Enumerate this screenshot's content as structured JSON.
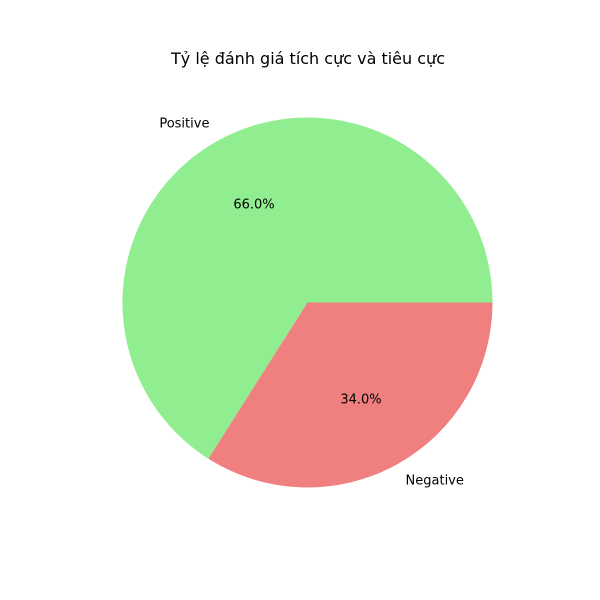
{
  "chart_data": {
    "type": "pie",
    "title": "Tỷ lệ đánh giá tích cực và tiêu cực",
    "labels": [
      "Positive",
      "Negative"
    ],
    "values": [
      66.0,
      34.0
    ],
    "percent_labels": [
      "66.0%",
      "34.0%"
    ],
    "colors": [
      "#90ee90",
      "#f08080"
    ],
    "start_angle_deg": 0,
    "direction": "counterclockwise",
    "legend": "none"
  }
}
